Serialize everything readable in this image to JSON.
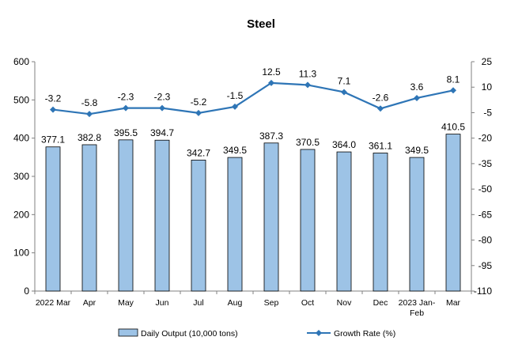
{
  "chart_data": {
    "type": "bar",
    "title": "Steel",
    "xlabel": "",
    "ylabel": "",
    "y2label": "",
    "categories": [
      "2022 Mar",
      "Apr",
      "May",
      "Jun",
      "Jul",
      "Aug",
      "Sep",
      "Oct",
      "Nov",
      "Dec",
      "2023 Jan-\nFeb",
      "Mar"
    ],
    "series": [
      {
        "name": "Daily Output (10,000 tons)",
        "type": "bar",
        "axis": "left",
        "color": "#9DC3E6",
        "edge_color": "#000000",
        "values": [
          377.1,
          382.8,
          395.5,
          394.7,
          342.7,
          349.5,
          387.3,
          370.5,
          364.0,
          361.1,
          349.5,
          410.5
        ],
        "labels": [
          "377.1",
          "382.8",
          "395.5",
          "394.7",
          "342.7",
          "349.5",
          "387.3",
          "370.5",
          "364.0",
          "361.1",
          "349.5",
          "410.5"
        ]
      },
      {
        "name": "Growth Rate (%)",
        "type": "line",
        "axis": "right",
        "color": "#2E75B6",
        "marker": "diamond",
        "values": [
          -3.2,
          -5.8,
          -2.3,
          -2.3,
          -5.2,
          -1.5,
          12.5,
          11.3,
          7.1,
          -2.6,
          3.6,
          8.1
        ],
        "labels": [
          "-3.2",
          "-5.8",
          "-2.3",
          "-2.3",
          "-5.2",
          "-1.5",
          "12.5",
          "11.3",
          "7.1",
          "-2.6",
          "3.6",
          "8.1"
        ]
      }
    ],
    "ylim": [
      0,
      600
    ],
    "yticks": [
      "0",
      "100",
      "200",
      "300",
      "400",
      "500",
      "600"
    ],
    "y2lim": [
      -110,
      25
    ],
    "y2ticks": [
      "25",
      "10",
      "-5",
      "-20",
      "-35",
      "-50",
      "-65",
      "-80",
      "-95",
      "-110"
    ],
    "grid": false,
    "legend_position": "bottom"
  }
}
